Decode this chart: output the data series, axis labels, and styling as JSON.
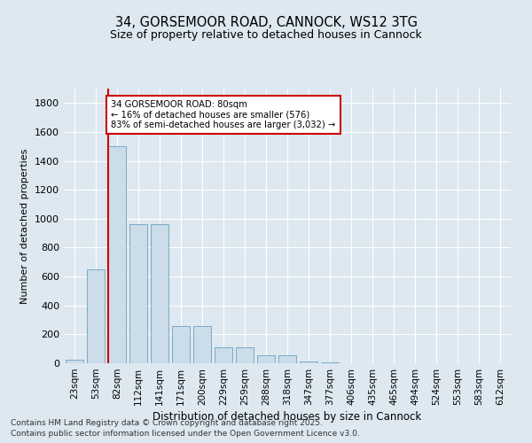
{
  "title_line1": "34, GORSEMOOR ROAD, CANNOCK, WS12 3TG",
  "title_line2": "Size of property relative to detached houses in Cannock",
  "xlabel": "Distribution of detached houses by size in Cannock",
  "ylabel": "Number of detached properties",
  "categories": [
    "23sqm",
    "53sqm",
    "82sqm",
    "112sqm",
    "141sqm",
    "171sqm",
    "200sqm",
    "229sqm",
    "259sqm",
    "288sqm",
    "318sqm",
    "347sqm",
    "377sqm",
    "406sqm",
    "435sqm",
    "465sqm",
    "494sqm",
    "524sqm",
    "553sqm",
    "583sqm",
    "612sqm"
  ],
  "values": [
    25,
    650,
    1500,
    960,
    960,
    260,
    260,
    110,
    110,
    55,
    55,
    10,
    5,
    3,
    2,
    1,
    1,
    1,
    0,
    0,
    0
  ],
  "bar_color": "#ccdce8",
  "bar_edge_color": "#7aaac8",
  "vline_color": "#cc0000",
  "annotation_text": "34 GORSEMOOR ROAD: 80sqm\n← 16% of detached houses are smaller (576)\n83% of semi-detached houses are larger (3,032) →",
  "annotation_box_color": "#ffffff",
  "annotation_box_edge": "#cc0000",
  "ylim": [
    0,
    1900
  ],
  "yticks": [
    0,
    200,
    400,
    600,
    800,
    1000,
    1200,
    1400,
    1600,
    1800
  ],
  "background_color": "#dde8f0",
  "grid_color": "#ffffff",
  "footnote1": "Contains HM Land Registry data © Crown copyright and database right 2025.",
  "footnote2": "Contains public sector information licensed under the Open Government Licence v3.0."
}
